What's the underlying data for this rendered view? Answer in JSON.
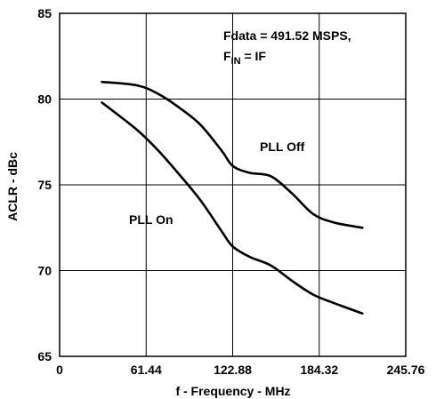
{
  "chart_data": {
    "type": "line",
    "xlabel": "f - Frequency - MHz",
    "ylabel": "ACLR - dBc",
    "xlim": [
      0,
      245.76
    ],
    "ylim": [
      65,
      85
    ],
    "x_ticks": [
      "0",
      "61.44",
      "122.88",
      "184.32",
      "245.76"
    ],
    "x_tick_values": [
      0,
      61.44,
      122.88,
      184.32,
      245.76
    ],
    "y_ticks": [
      "65",
      "70",
      "75",
      "80",
      "85"
    ],
    "y_tick_values": [
      65,
      70,
      75,
      80,
      85
    ],
    "grid": true,
    "annotation": {
      "line1": "Fdata = 491.52 MSPS,",
      "line2_main": "F",
      "line2_sub": "IN",
      "line2_rest": " = IF"
    },
    "series": [
      {
        "name": "PLL Off",
        "x": [
          30,
          55,
          70,
          85,
          100,
          115,
          123,
          135,
          150,
          165,
          180,
          195,
          215
        ],
        "y": [
          81,
          80.8,
          80.3,
          79.5,
          78.5,
          77,
          76.1,
          75.7,
          75.5,
          74.5,
          73.3,
          72.8,
          72.5
        ]
      },
      {
        "name": "PLL On",
        "x": [
          30,
          55,
          70,
          85,
          100,
          115,
          123,
          135,
          150,
          165,
          180,
          195,
          215
        ],
        "y": [
          79.8,
          78.2,
          77.0,
          75.6,
          74.1,
          72.3,
          71.4,
          70.8,
          70.3,
          69.4,
          68.6,
          68.1,
          67.5
        ]
      }
    ]
  }
}
